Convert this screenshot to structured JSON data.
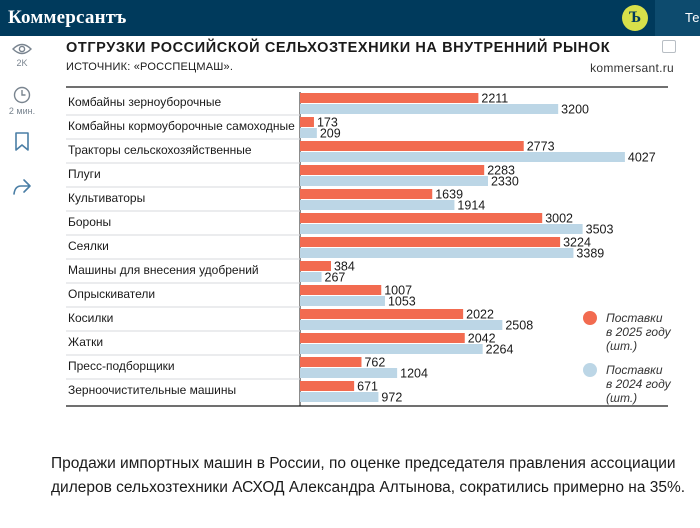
{
  "header": {
    "logo": "Коммерсантъ",
    "badge": "Ъ",
    "tab_fragment": "Те"
  },
  "sidebar": {
    "views": "2K",
    "read_time": "2 мин."
  },
  "chart_data": {
    "type": "bar",
    "title": "ОТГРУЗКИ РОССИЙСКОЙ СЕЛЬХОЗТЕХНИКИ НА ВНУТРЕННИЙ РЫНОК",
    "source": "ИСТОЧНИК: «РОССПЕЦМАШ».",
    "site": "kommersant.ru",
    "categories": [
      "Комбайны зерноуборочные",
      "Комбайны кормоуборочные самоходные",
      "Тракторы сельскохозяйственные",
      "Плуги",
      "Культиваторы",
      "Бороны",
      "Сеялки",
      "Машины для внесения удобрений",
      "Опрыскиватели",
      "Косилки",
      "Жатки",
      "Пресс-подборщики",
      "Зерноочистительные машины"
    ],
    "series": [
      {
        "name": "Поставки в 2025 году (шт.)",
        "color": "#f26b50",
        "values": [
          2211,
          173,
          2773,
          2283,
          1639,
          3002,
          3224,
          384,
          1007,
          2022,
          2042,
          762,
          671
        ]
      },
      {
        "name": "Поставки в 2024 году (шт.)",
        "color": "#bcd6e6",
        "values": [
          3200,
          209,
          4027,
          2330,
          1914,
          3503,
          3389,
          267,
          1053,
          2508,
          2264,
          1204,
          972
        ]
      }
    ],
    "legend": [
      {
        "line1": "Поставки",
        "line2": "в 2025 году",
        "line3": "(шт.)"
      },
      {
        "line1": "Поставки",
        "line2": "в 2024 году",
        "line3": "(шт.)"
      }
    ],
    "xlim": [
      0,
      4500
    ],
    "legend_position": "right"
  },
  "article": {
    "text": "Продажи импортных машин в России, по оценке председателя правления ассоциации дилеров сельхозтехники АСХОД Александра Алтынова, сократились примерно на 35%."
  }
}
